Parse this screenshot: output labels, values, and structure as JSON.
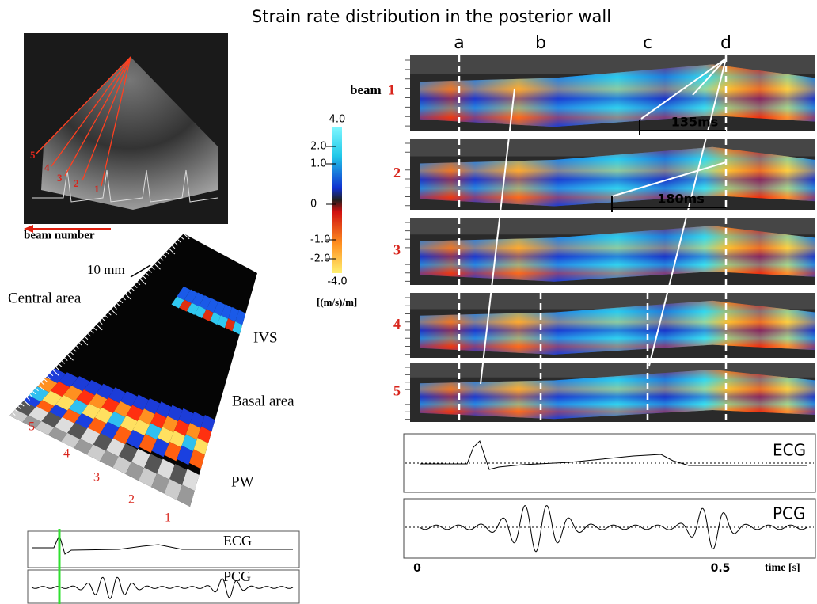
{
  "title": "Strain rate distribution in the posterior wall",
  "echo": {
    "beam_labels": [
      "5",
      "4",
      "3",
      "2",
      "1"
    ],
    "caption": "beam number"
  },
  "fan": {
    "scale": "10 mm",
    "central": "Central area",
    "ivs": "IVS",
    "basal": "Basal area",
    "pw": "PW",
    "beam_labels": [
      "5",
      "4",
      "3",
      "2",
      "1"
    ]
  },
  "small_traces": {
    "ecg": "ECG",
    "pcg": "PCG"
  },
  "colorbar": {
    "top": "4.0",
    "ticks": [
      "2.0",
      "1.0",
      "0",
      "-1.0",
      "-2.0"
    ],
    "bottom": "-4.0",
    "unit": "[(m/s)/m]"
  },
  "mmode": {
    "events": [
      "a",
      "b",
      "c",
      "d"
    ],
    "first_beam_word": "beam",
    "beams": [
      "1",
      "2",
      "3",
      "4",
      "5"
    ],
    "intervals": [
      "135ms",
      "180ms"
    ]
  },
  "traces": {
    "ecg": "ECG",
    "pcg": "PCG",
    "axis": [
      "0",
      "0.5"
    ],
    "axis_label": "time [s]"
  }
}
